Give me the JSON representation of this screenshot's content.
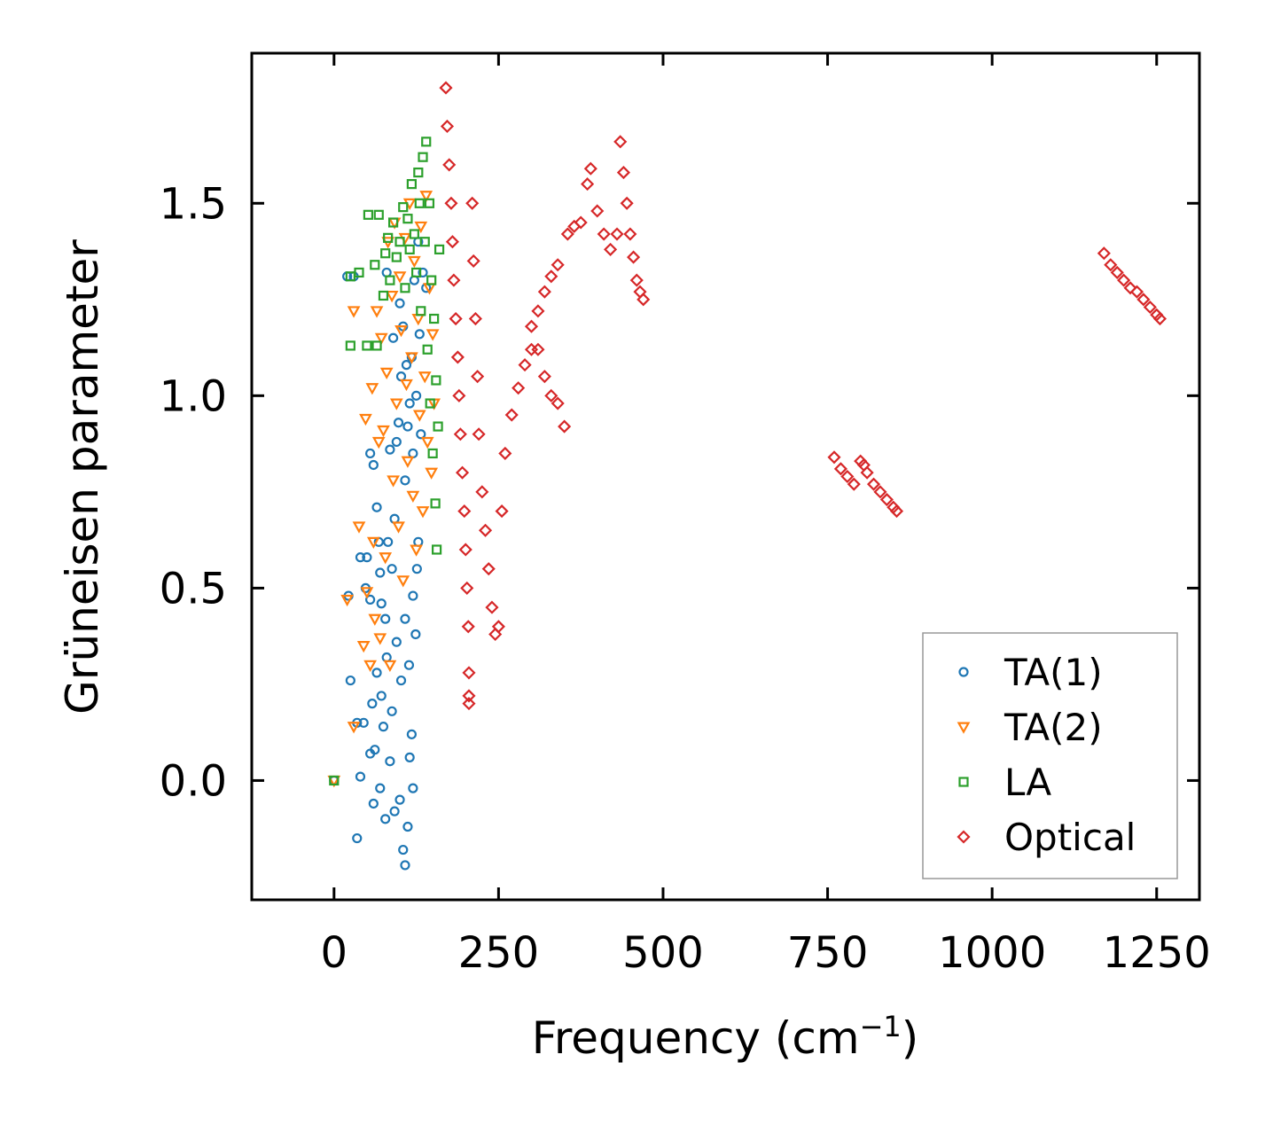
{
  "chart_data": {
    "type": "scatter",
    "title": "",
    "xlabel": "Frequency (cm",
    "xlabel_sup": "−1",
    "xlabel_end": ")",
    "ylabel": "Grüneisen parameter",
    "xlim": [
      -125,
      1315
    ],
    "ylim": [
      -0.31,
      1.89
    ],
    "xticks": [
      0,
      250,
      500,
      750,
      1000,
      1250
    ],
    "xtick_labels": [
      "0",
      "250",
      "500",
      "750",
      "1000",
      "1250"
    ],
    "yticks": [
      0.0,
      0.5,
      1.0,
      1.5
    ],
    "ytick_labels": [
      "0.0",
      "0.5",
      "1.0",
      "1.5"
    ],
    "grid": false,
    "legend_position": "lower-right",
    "series": [
      {
        "name": "TA(1)",
        "marker": "circle",
        "color": "#1f77b4",
        "points": [
          [
            0,
            0.0
          ],
          [
            20,
            1.31
          ],
          [
            22,
            0.48
          ],
          [
            25,
            0.26
          ],
          [
            30,
            1.31
          ],
          [
            35,
            0.15
          ],
          [
            35,
            -0.15
          ],
          [
            40,
            0.58
          ],
          [
            40,
            0.01
          ],
          [
            45,
            0.15
          ],
          [
            48,
            0.5
          ],
          [
            50,
            0.58
          ],
          [
            55,
            0.07
          ],
          [
            55,
            0.85
          ],
          [
            55,
            0.47
          ],
          [
            58,
            0.2
          ],
          [
            60,
            0.82
          ],
          [
            62,
            0.08
          ],
          [
            65,
            0.71
          ],
          [
            68,
            0.62
          ],
          [
            70,
            0.54
          ],
          [
            72,
            0.46
          ],
          [
            75,
            0.14
          ],
          [
            78,
            0.42
          ],
          [
            80,
            1.32
          ],
          [
            82,
            0.62
          ],
          [
            85,
            0.86
          ],
          [
            88,
            0.55
          ],
          [
            90,
            1.15
          ],
          [
            92,
            0.68
          ],
          [
            95,
            0.88
          ],
          [
            98,
            0.93
          ],
          [
            100,
            1.24
          ],
          [
            102,
            1.05
          ],
          [
            105,
            1.18
          ],
          [
            108,
            0.78
          ],
          [
            110,
            1.08
          ],
          [
            112,
            0.92
          ],
          [
            115,
            0.98
          ],
          [
            118,
            1.1
          ],
          [
            120,
            0.85
          ],
          [
            122,
            1.3
          ],
          [
            125,
            1.0
          ],
          [
            128,
            1.4
          ],
          [
            130,
            1.16
          ],
          [
            132,
            0.9
          ],
          [
            135,
            1.32
          ],
          [
            140,
            1.28
          ],
          [
            60,
            -0.06
          ],
          [
            70,
            -0.02
          ],
          [
            78,
            -0.1
          ],
          [
            85,
            0.05
          ],
          [
            92,
            -0.08
          ],
          [
            100,
            -0.05
          ],
          [
            105,
            -0.18
          ],
          [
            108,
            -0.22
          ],
          [
            112,
            -0.12
          ],
          [
            115,
            0.06
          ],
          [
            118,
            0.12
          ],
          [
            120,
            -0.02
          ],
          [
            65,
            0.28
          ],
          [
            72,
            0.22
          ],
          [
            80,
            0.32
          ],
          [
            88,
            0.18
          ],
          [
            95,
            0.36
          ],
          [
            102,
            0.26
          ],
          [
            108,
            0.42
          ],
          [
            114,
            0.3
          ],
          [
            120,
            0.48
          ],
          [
            124,
            0.38
          ],
          [
            126,
            0.55
          ],
          [
            128,
            0.62
          ]
        ]
      },
      {
        "name": "TA(2)",
        "marker": "triangle-down",
        "color": "#ff7f0e",
        "points": [
          [
            0,
            0.0
          ],
          [
            20,
            0.47
          ],
          [
            30,
            0.14
          ],
          [
            30,
            1.22
          ],
          [
            38,
            0.66
          ],
          [
            45,
            0.35
          ],
          [
            48,
            0.94
          ],
          [
            50,
            0.49
          ],
          [
            55,
            0.3
          ],
          [
            58,
            1.02
          ],
          [
            60,
            0.62
          ],
          [
            62,
            0.42
          ],
          [
            65,
            1.22
          ],
          [
            68,
            0.88
          ],
          [
            70,
            0.37
          ],
          [
            72,
            1.15
          ],
          [
            75,
            0.91
          ],
          [
            78,
            0.58
          ],
          [
            80,
            1.06
          ],
          [
            82,
            1.4
          ],
          [
            85,
            0.3
          ],
          [
            88,
            1.26
          ],
          [
            90,
            0.78
          ],
          [
            92,
            1.45
          ],
          [
            95,
            0.98
          ],
          [
            98,
            0.66
          ],
          [
            100,
            1.31
          ],
          [
            102,
            1.17
          ],
          [
            105,
            0.52
          ],
          [
            108,
            1.41
          ],
          [
            110,
            1.03
          ],
          [
            112,
            0.83
          ],
          [
            115,
            1.5
          ],
          [
            118,
            1.1
          ],
          [
            120,
            0.74
          ],
          [
            122,
            1.35
          ],
          [
            125,
            0.6
          ],
          [
            128,
            1.2
          ],
          [
            130,
            0.95
          ],
          [
            132,
            1.44
          ],
          [
            135,
            0.7
          ],
          [
            138,
            1.05
          ],
          [
            140,
            1.52
          ],
          [
            142,
            0.88
          ],
          [
            145,
            1.28
          ],
          [
            148,
            0.8
          ],
          [
            150,
            1.16
          ],
          [
            152,
            0.98
          ]
        ]
      },
      {
        "name": "LA",
        "marker": "square",
        "color": "#2ca02c",
        "points": [
          [
            0,
            0.0
          ],
          [
            25,
            1.31
          ],
          [
            25,
            1.13
          ],
          [
            38,
            1.32
          ],
          [
            50,
            1.13
          ],
          [
            52,
            1.47
          ],
          [
            62,
            1.34
          ],
          [
            65,
            1.13
          ],
          [
            68,
            1.47
          ],
          [
            75,
            1.26
          ],
          [
            78,
            1.37
          ],
          [
            82,
            1.41
          ],
          [
            85,
            1.3
          ],
          [
            90,
            1.45
          ],
          [
            95,
            1.36
          ],
          [
            100,
            1.4
          ],
          [
            105,
            1.49
          ],
          [
            108,
            1.28
          ],
          [
            112,
            1.46
          ],
          [
            115,
            1.38
          ],
          [
            118,
            1.55
          ],
          [
            122,
            1.42
          ],
          [
            125,
            1.32
          ],
          [
            128,
            1.58
          ],
          [
            130,
            1.5
          ],
          [
            132,
            1.22
          ],
          [
            135,
            1.62
          ],
          [
            138,
            1.4
          ],
          [
            140,
            1.66
          ],
          [
            142,
            1.12
          ],
          [
            145,
            1.5
          ],
          [
            146,
            0.98
          ],
          [
            148,
            1.3
          ],
          [
            150,
            0.85
          ],
          [
            152,
            1.2
          ],
          [
            154,
            0.72
          ],
          [
            155,
            1.04
          ],
          [
            156,
            0.6
          ],
          [
            158,
            0.92
          ],
          [
            160,
            1.38
          ]
        ]
      },
      {
        "name": "Optical",
        "marker": "diamond",
        "color": "#d62728",
        "points": [
          [
            170,
            1.8
          ],
          [
            172,
            1.7
          ],
          [
            175,
            1.6
          ],
          [
            178,
            1.5
          ],
          [
            180,
            1.4
          ],
          [
            182,
            1.3
          ],
          [
            185,
            1.2
          ],
          [
            188,
            1.1
          ],
          [
            190,
            1.0
          ],
          [
            192,
            0.9
          ],
          [
            195,
            0.8
          ],
          [
            198,
            0.7
          ],
          [
            200,
            0.6
          ],
          [
            202,
            0.5
          ],
          [
            204,
            0.4
          ],
          [
            205,
            0.28
          ],
          [
            205,
            0.22
          ],
          [
            205,
            0.2
          ],
          [
            210,
            1.5
          ],
          [
            212,
            1.35
          ],
          [
            215,
            1.2
          ],
          [
            218,
            1.05
          ],
          [
            220,
            0.9
          ],
          [
            225,
            0.75
          ],
          [
            230,
            0.65
          ],
          [
            235,
            0.55
          ],
          [
            240,
            0.45
          ],
          [
            245,
            0.38
          ],
          [
            250,
            0.4
          ],
          [
            255,
            0.7
          ],
          [
            260,
            0.85
          ],
          [
            270,
            0.95
          ],
          [
            280,
            1.02
          ],
          [
            290,
            1.08
          ],
          [
            300,
            1.12
          ],
          [
            310,
            1.12
          ],
          [
            320,
            1.05
          ],
          [
            330,
            1.0
          ],
          [
            340,
            0.98
          ],
          [
            350,
            0.92
          ],
          [
            300,
            1.18
          ],
          [
            310,
            1.22
          ],
          [
            320,
            1.27
          ],
          [
            330,
            1.31
          ],
          [
            340,
            1.34
          ],
          [
            355,
            1.42
          ],
          [
            365,
            1.44
          ],
          [
            375,
            1.45
          ],
          [
            385,
            1.55
          ],
          [
            390,
            1.59
          ],
          [
            400,
            1.48
          ],
          [
            410,
            1.42
          ],
          [
            420,
            1.38
          ],
          [
            430,
            1.42
          ],
          [
            435,
            1.66
          ],
          [
            440,
            1.58
          ],
          [
            445,
            1.5
          ],
          [
            450,
            1.42
          ],
          [
            455,
            1.36
          ],
          [
            460,
            1.3
          ],
          [
            465,
            1.27
          ],
          [
            470,
            1.25
          ],
          [
            760,
            0.84
          ],
          [
            770,
            0.81
          ],
          [
            780,
            0.79
          ],
          [
            790,
            0.77
          ],
          [
            800,
            0.83
          ],
          [
            805,
            0.82
          ],
          [
            810,
            0.8
          ],
          [
            820,
            0.77
          ],
          [
            830,
            0.75
          ],
          [
            840,
            0.73
          ],
          [
            850,
            0.71
          ],
          [
            855,
            0.7
          ],
          [
            1170,
            1.37
          ],
          [
            1180,
            1.34
          ],
          [
            1190,
            1.32
          ],
          [
            1200,
            1.3
          ],
          [
            1210,
            1.28
          ],
          [
            1220,
            1.27
          ],
          [
            1230,
            1.25
          ],
          [
            1240,
            1.23
          ],
          [
            1250,
            1.21
          ],
          [
            1255,
            1.2
          ]
        ]
      }
    ]
  }
}
